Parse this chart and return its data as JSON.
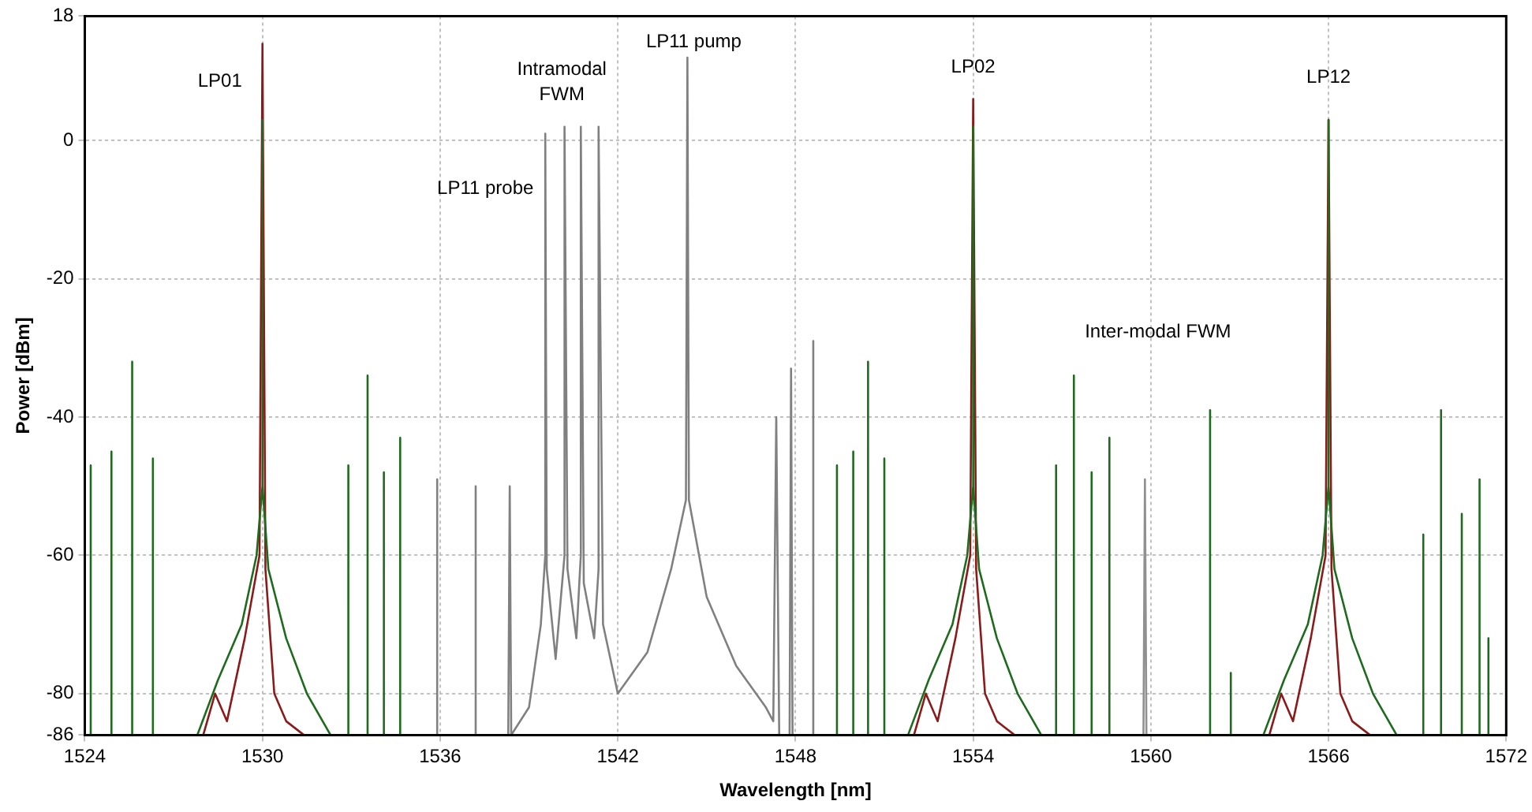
{
  "chart_data": {
    "type": "line",
    "xlabel": "Wavelength [nm]",
    "ylabel": "Power [dBm]",
    "xlim": [
      1524,
      1572
    ],
    "xticks": [
      1524,
      1530,
      1536,
      1542,
      1548,
      1554,
      1560,
      1566,
      1572
    ],
    "ylim": [
      -86,
      18
    ],
    "yticks": [
      -86,
      -80,
      -60,
      -40,
      -20,
      0,
      18
    ],
    "grid": true,
    "legend": false,
    "marker": "none",
    "line_style": "solid",
    "series": [
      {
        "color": "#808080",
        "x": [
          1535.9,
          1535.9,
          1535.9,
          1537.2,
          1537.2,
          1537.2,
          1538.3,
          1538.35,
          1538.4,
          1539,
          1539.4,
          1539.55,
          1539.55,
          1539.6,
          1539.9,
          1540.2,
          1540.2,
          1540.3,
          1540.6,
          1540.75,
          1540.75,
          1540.85,
          1541.2,
          1541.35,
          1541.35,
          1541.5,
          1542,
          1543,
          1543.8,
          1544.3,
          1544.35,
          1544.4,
          1545,
          1546,
          1547,
          1547.25,
          1547.35,
          1547.45,
          1547.8,
          1547.85,
          1547.9,
          1548.6,
          1548.6,
          1548.6
        ],
        "values": [
          -86,
          -49,
          -86,
          -86,
          -50,
          -86,
          -86,
          -50,
          -86,
          -82,
          -70,
          -60,
          1,
          -62,
          -75,
          -60,
          2,
          -62,
          -72,
          -60,
          2,
          -64,
          -72,
          -62,
          2,
          -70,
          -80,
          -74,
          -62,
          -52,
          12,
          -52,
          -66,
          -76,
          -82,
          -84,
          -40,
          -86,
          -86,
          -33,
          -86,
          -86,
          -29,
          -86
        ]
      },
      {
        "color": "#909090",
        "x": [
          1559.75,
          1559.8,
          1559.85
        ],
        "values": [
          -86,
          -49,
          -86
        ]
      },
      {
        "color": "#1e6b1e",
        "x": [
          1524.2,
          1524.2,
          1524.2,
          1524.9,
          1524.9,
          1524.9,
          1525.6,
          1525.6,
          1525.6,
          1526.3,
          1526.3,
          1526.3,
          1527.8,
          1528.5,
          1529.3,
          1529.8,
          1530,
          1530,
          1530,
          1530.2,
          1530.8,
          1531.5,
          1532.3,
          1532.9,
          1532.9,
          1532.9,
          1533.55,
          1533.55,
          1533.55,
          1534.1,
          1534.1,
          1534.1,
          1534.65,
          1534.65,
          1534.65,
          1549.4,
          1549.4,
          1549.4,
          1549.95,
          1549.95,
          1549.95,
          1550.45,
          1550.45,
          1550.45,
          1551,
          1551,
          1551,
          1551.8,
          1552.5,
          1553.3,
          1553.8,
          1554,
          1554,
          1554,
          1554.2,
          1554.8,
          1555.5,
          1556.3,
          1556.8,
          1556.8,
          1556.8,
          1557.4,
          1557.4,
          1557.4,
          1558,
          1558,
          1558,
          1558.6,
          1558.6,
          1558.6,
          1562,
          1562,
          1562,
          1562.7,
          1562.7,
          1562.7,
          1563.8,
          1564.5,
          1565.3,
          1565.8,
          1566,
          1566,
          1566,
          1566.2,
          1566.8,
          1567.5,
          1568.3,
          1569.2,
          1569.2,
          1569.2,
          1569.8,
          1569.8,
          1569.8,
          1570.5,
          1570.5,
          1570.5,
          1571.1,
          1571.1,
          1571.1,
          1571.4,
          1571.4,
          1571.4
        ],
        "values": [
          -86,
          -47,
          -86,
          -86,
          -45,
          -86,
          -86,
          -32,
          -86,
          -86,
          -46,
          -86,
          -86,
          -78,
          -70,
          -60,
          -50,
          3,
          -50,
          -62,
          -72,
          -80,
          -86,
          -86,
          -47,
          -86,
          -86,
          -34,
          -86,
          -86,
          -48,
          -86,
          -86,
          -43,
          -86,
          -86,
          -47,
          -86,
          -86,
          -45,
          -86,
          -86,
          -32,
          -86,
          -86,
          -46,
          -86,
          -86,
          -78,
          -70,
          -60,
          -50,
          2,
          -50,
          -62,
          -72,
          -80,
          -86,
          -86,
          -47,
          -86,
          -86,
          -34,
          -86,
          -86,
          -48,
          -86,
          -86,
          -43,
          -86,
          -86,
          -39,
          -86,
          -86,
          -77,
          -86,
          -86,
          -78,
          -70,
          -60,
          -50,
          3,
          -50,
          -62,
          -72,
          -80,
          -86,
          -86,
          -57,
          -86,
          -86,
          -39,
          -86,
          -86,
          -54,
          -86,
          -86,
          -49,
          -86,
          -86,
          -72,
          -86
        ]
      },
      {
        "color": "#8b1a1a",
        "x": [
          1528,
          1528.4,
          1528.8,
          1529.4,
          1529.9,
          1530,
          1530.1,
          1530.4,
          1530.8,
          1531.4,
          1552,
          1552.4,
          1552.8,
          1553.4,
          1553.9,
          1554,
          1554.1,
          1554.4,
          1554.8,
          1555.4,
          1564,
          1564.4,
          1564.8,
          1565.4,
          1565.9,
          1566,
          1566.1,
          1566.4,
          1566.8,
          1567.4
        ],
        "values": [
          -86,
          -80,
          -84,
          -72,
          -60,
          14,
          -62,
          -80,
          -84,
          -86,
          -86,
          -80,
          -84,
          -72,
          -60,
          6,
          -62,
          -80,
          -84,
          -86,
          -86,
          -80,
          -84,
          -72,
          -60,
          3,
          -62,
          -80,
          -84,
          -86
        ]
      }
    ],
    "annotations": [
      {
        "text": "LP01",
        "x": 1530,
        "y": 14
      },
      {
        "text": "LP11 probe",
        "x": 1539.55,
        "y": 1
      },
      {
        "text": "Intramodal\nFWM",
        "x": 1540.75,
        "y": 2
      },
      {
        "text": "LP11 pump",
        "x": 1544.35,
        "y": 12
      },
      {
        "text": "LP02",
        "x": 1554,
        "y": 6
      },
      {
        "text": "LP12",
        "x": 1566,
        "y": 3
      },
      "Inter-modal FWM"
    ]
  }
}
